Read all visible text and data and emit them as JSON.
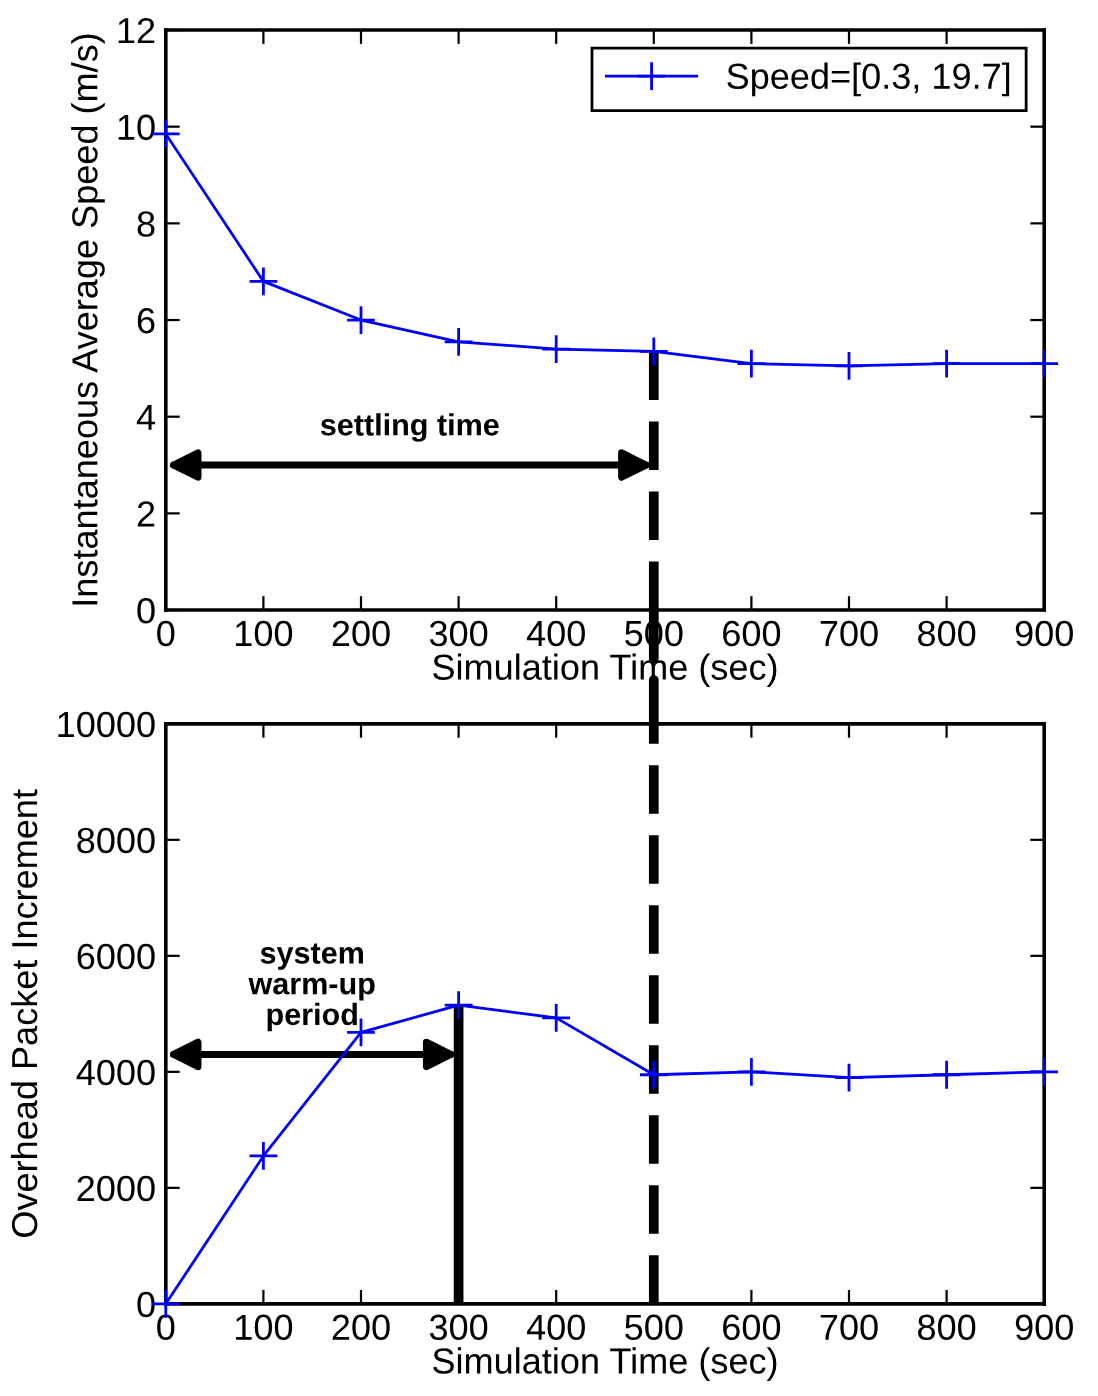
{
  "chart_data": [
    {
      "type": "line",
      "xlabel": "Simulation Time (sec)",
      "ylabel": "Instantaneous Average Speed (m/s)",
      "x": [
        0,
        100,
        200,
        300,
        400,
        500,
        600,
        700,
        800,
        900
      ],
      "series": [
        {
          "name": "Speed=[0.3, 19.7]",
          "color": "#0000ff",
          "values": [
            9.85,
            6.8,
            6.0,
            5.55,
            5.4,
            5.35,
            5.1,
            5.05,
            5.1,
            5.1
          ]
        }
      ],
      "xlim": [
        0,
        900
      ],
      "xticks": [
        0,
        100,
        200,
        300,
        400,
        500,
        600,
        700,
        800,
        900
      ],
      "ylim": [
        0,
        12
      ],
      "yticks": [
        0,
        2,
        4,
        6,
        8,
        10,
        12
      ],
      "ref_lines": [
        {
          "axis": "x",
          "value": 500,
          "label": "settling time",
          "line_style": "dashed"
        }
      ],
      "marker": "cross",
      "line_style": "solid",
      "legend": "top right",
      "grid": false
    },
    {
      "type": "line",
      "xlabel": "Simulation Time (sec)",
      "ylabel": "Overhead Packet Increment",
      "x": [
        0,
        100,
        200,
        300,
        400,
        500,
        600,
        700,
        800,
        900
      ],
      "series": [
        {
          "color": "#0000ff",
          "values": [
            0,
            2550,
            4680,
            5150,
            4930,
            3950,
            4000,
            3900,
            3950,
            4000
          ]
        }
      ],
      "xlim": [
        0,
        900
      ],
      "xticks": [
        0,
        100,
        200,
        300,
        400,
        500,
        600,
        700,
        800,
        900
      ],
      "ylim": [
        0,
        10000
      ],
      "yticks": [
        0,
        2000,
        4000,
        6000,
        8000,
        10000
      ],
      "ref_lines": [
        {
          "axis": "x",
          "value": 300,
          "label": "system\nwarm-up\nperiod",
          "line_style": "solid"
        },
        {
          "axis": "x",
          "value": 500,
          "line_style": "dashed"
        }
      ],
      "marker": "cross",
      "line_style": "solid",
      "grid": false
    }
  ]
}
